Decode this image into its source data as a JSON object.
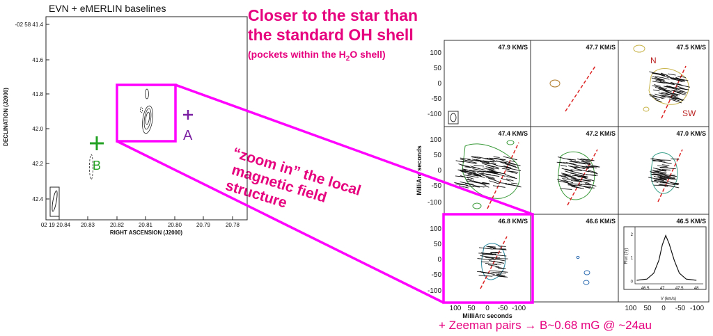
{
  "slide": {
    "heading_line1": "Closer to the star than",
    "heading_line2": "the standard OH shell",
    "subheading_pre": "(pockets within the H",
    "subheading_sub1": "2",
    "subheading_mid": "O",
    "subheading_post": " shell)",
    "zoom_note_line1": "“zoom in” the local",
    "zoom_note_line2": "magnetic field",
    "zoom_note_line3": "structure",
    "zeeman_note": "+ Zeeman pairs → B~0.68 mG @ ~24au",
    "accent_color": "#e6007e",
    "box_color": "#ff00ff"
  },
  "left_map": {
    "title": "EVN + eMERLIN baselines",
    "xlabel": "RIGHT ASCENSION (J2000)",
    "ylabel": "DECLINATION (J2000)",
    "x_ticks": [
      "02 19 20.84",
      "20.83",
      "20.82",
      "20.81",
      "20.80",
      "20.79",
      "20.78"
    ],
    "y_ticks": [
      "-02 58 41.4",
      "41.6",
      "41.8",
      "42.0",
      "42.2",
      "42.4"
    ],
    "marker_a": "A",
    "marker_b": "B",
    "marker_a_color": "#7b1fa2",
    "marker_b_color": "#22a122"
  },
  "channel_grid": {
    "velocities": [
      "47.9 KM/S",
      "47.7 KM/S",
      "47.5 KM/S",
      "47.4 KM/S",
      "47.2 KM/S",
      "47.0 KM/S",
      "46.8 KM/S",
      "46.6 KM/S",
      "46.5 KM/S"
    ],
    "y_ticks_top": [
      "100",
      "50",
      "0",
      "-50",
      "-100"
    ],
    "y_ticks_mid": [
      "100",
      "50",
      "0",
      "-50",
      "-100"
    ],
    "y_ticks_bot": [
      "100",
      "50",
      "0",
      "-50",
      "-100"
    ],
    "x_ticks": [
      "100",
      "50",
      "0",
      "-50",
      "-100"
    ],
    "xlabel": "MilliArc seconds",
    "ylabel": "MilliArc seconds",
    "label_n": "N",
    "label_sw": "SW"
  },
  "chart_data": {
    "type": "line",
    "title": "",
    "xlabel": "V (km/s)",
    "ylabel": "Flux (Jy)",
    "x_ticks": [
      "46.5",
      "47",
      "47.5",
      "48"
    ],
    "y_ticks": [
      "0",
      "1",
      "2"
    ],
    "xlim": [
      46.2,
      48.2
    ],
    "ylim": [
      -0.1,
      2.2
    ],
    "series": [
      {
        "x": [
          46.25,
          46.55,
          46.75,
          46.9,
          47.0,
          47.1,
          47.2,
          47.35,
          47.5,
          47.7,
          48.0
        ],
        "values": [
          0.05,
          0.1,
          0.35,
          0.9,
          1.55,
          1.95,
          1.6,
          0.9,
          0.35,
          0.1,
          0.05
        ]
      }
    ]
  }
}
